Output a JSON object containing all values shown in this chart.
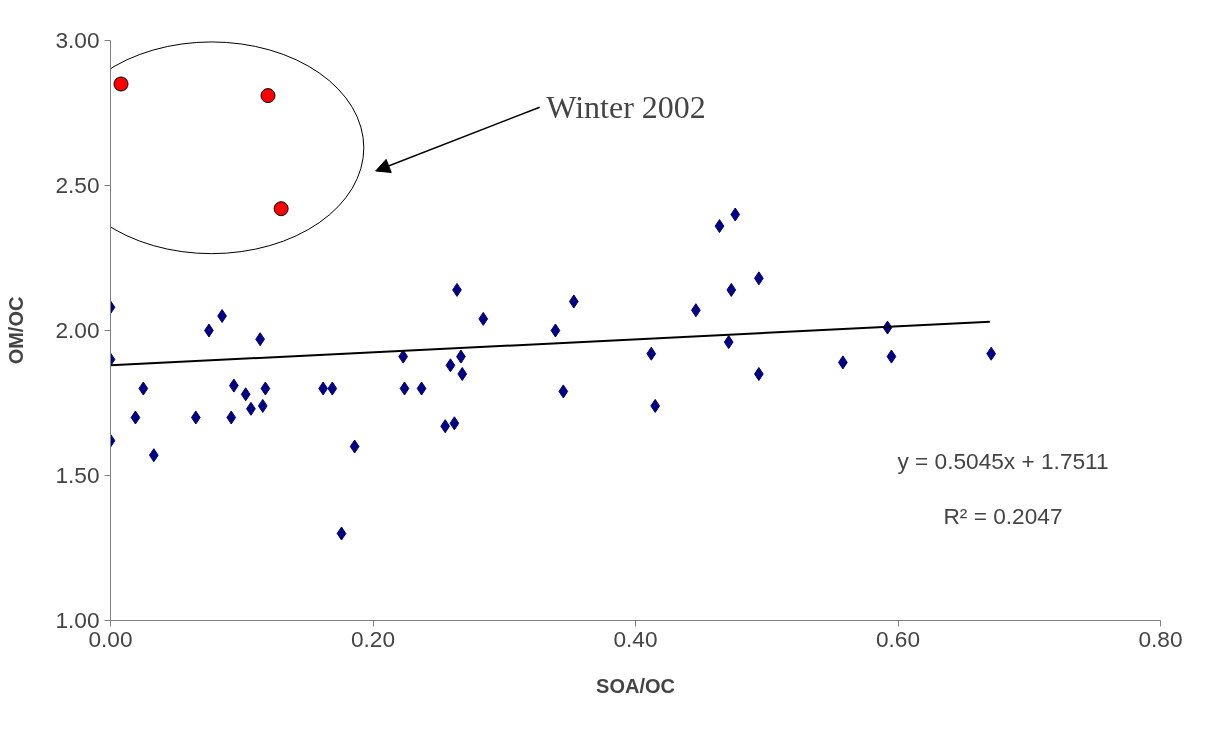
{
  "chart_data": {
    "type": "scatter",
    "xlabel": "SOA/OC",
    "ylabel": "OM/OC",
    "xlim": [
      0,
      0.8
    ],
    "ylim": [
      1,
      3
    ],
    "xticks": [
      {
        "value": 0,
        "label": "0.00"
      },
      {
        "value": 0.2,
        "label": "0.20"
      },
      {
        "value": 0.4,
        "label": "0.40"
      },
      {
        "value": 0.6,
        "label": "0.60"
      },
      {
        "value": 0.8,
        "label": "0.80"
      }
    ],
    "yticks": [
      {
        "value": 1,
        "label": "1.00"
      },
      {
        "value": 1.5,
        "label": "1.50"
      },
      {
        "value": 2,
        "label": "2.00"
      },
      {
        "value": 2.5,
        "label": "2.50"
      },
      {
        "value": 3,
        "label": "3.00"
      }
    ],
    "grid": false,
    "series": [
      {
        "color": "#000080",
        "marker": "diamond",
        "x": [
          0,
          0,
          0,
          0.019,
          0.025,
          0.033,
          0.065,
          0.075,
          0.085,
          0.092,
          0.094,
          0.103,
          0.107,
          0.114,
          0.116,
          0.118,
          0.162,
          0.169,
          0.176,
          0.186,
          0.223,
          0.224,
          0.237,
          0.255,
          0.262,
          0.264,
          0.259,
          0.267,
          0.268,
          0.284,
          0.339,
          0.353,
          0.345,
          0.412,
          0.415,
          0.446,
          0.464,
          0.476,
          0.473,
          0.494,
          0.471,
          0.494,
          0.558,
          0.592,
          0.595,
          0.671
        ],
        "values": [
          2.08,
          1.9,
          1.62,
          1.7,
          1.8,
          1.57,
          1.7,
          2.0,
          2.05,
          1.7,
          1.81,
          1.78,
          1.73,
          1.97,
          1.74,
          1.8,
          1.8,
          1.8,
          1.3,
          1.6,
          1.91,
          1.8,
          1.8,
          1.67,
          1.68,
          2.14,
          1.88,
          1.91,
          1.85,
          2.04,
          2.0,
          2.1,
          1.79,
          1.92,
          1.74,
          2.07,
          2.36,
          2.4,
          2.14,
          2.18,
          1.96,
          1.85,
          1.89,
          2.01,
          1.91,
          1.92
        ]
      },
      {
        "color": "#ff0000",
        "marker": "circle",
        "x": [
          0.008,
          0.12,
          0.13
        ],
        "values": [
          2.85,
          2.81,
          2.42
        ]
      },
      {
        "type": "line",
        "color": "#000000",
        "x": [
          0,
          0.67
        ],
        "values": [
          1.88,
          2.03
        ]
      }
    ],
    "annotations": [
      "Winter 2002",
      "y = 0.5045x + 1.7511",
      "R² = 0.2047"
    ]
  }
}
